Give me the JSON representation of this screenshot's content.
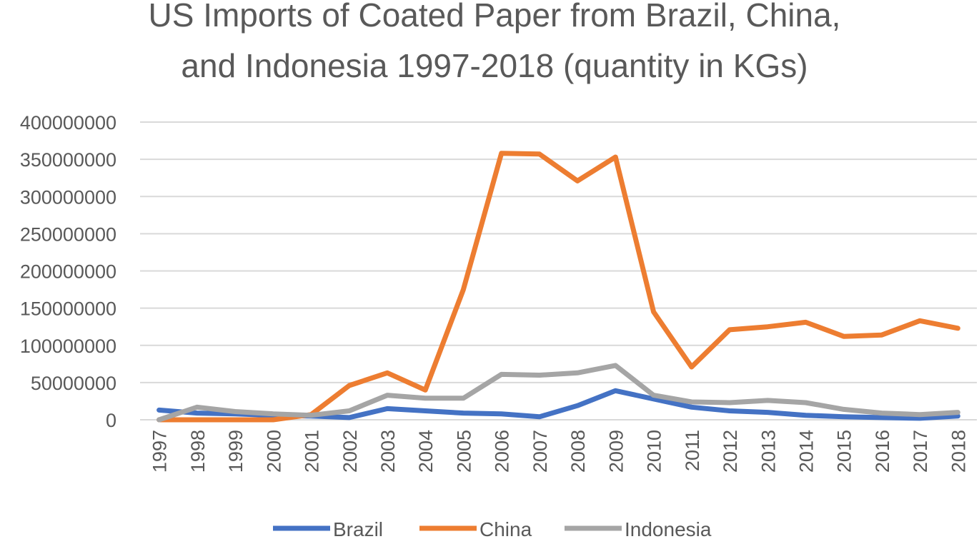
{
  "chart_data": {
    "type": "line",
    "title": [
      "US Imports of Coated Paper from Brazil, China,",
      "and Indonesia 1997-2018 (quantity in KGs)"
    ],
    "xlabel": "",
    "ylabel": "",
    "x": [
      "1997",
      "1998",
      "1999",
      "2000",
      "2001",
      "2002",
      "2003",
      "2004",
      "2005",
      "2006",
      "2007",
      "2008",
      "2009",
      "2010",
      "2011",
      "2012",
      "2013",
      "2014",
      "2015",
      "2016",
      "2017",
      "2018"
    ],
    "ylim": [
      0,
      400000000
    ],
    "yticks": [
      0,
      50000000,
      100000000,
      150000000,
      200000000,
      250000000,
      300000000,
      350000000,
      400000000
    ],
    "grid": true,
    "legend_position": "bottom",
    "series": [
      {
        "name": "Brazil",
        "color": "#4472C4",
        "values": [
          13000000,
          9000000,
          8000000,
          6000000,
          5000000,
          3000000,
          15000000,
          12000000,
          9000000,
          8000000,
          4000000,
          19000000,
          39000000,
          28000000,
          17000000,
          12000000,
          10000000,
          6000000,
          4000000,
          3000000,
          2000000,
          5000000
        ]
      },
      {
        "name": "China",
        "color": "#ED7D31",
        "values": [
          0,
          0,
          0,
          0,
          7000000,
          46000000,
          63000000,
          40000000,
          175000000,
          358000000,
          357000000,
          321000000,
          353000000,
          145000000,
          71000000,
          121000000,
          125000000,
          131000000,
          112000000,
          114000000,
          133000000,
          123000000
        ]
      },
      {
        "name": "Indonesia",
        "color": "#A5A5A5",
        "values": [
          0,
          17000000,
          11000000,
          8000000,
          6000000,
          12000000,
          33000000,
          29000000,
          29000000,
          61000000,
          60000000,
          63000000,
          73000000,
          33000000,
          24000000,
          23000000,
          26000000,
          23000000,
          14000000,
          9000000,
          7000000,
          10000000
        ]
      }
    ]
  }
}
